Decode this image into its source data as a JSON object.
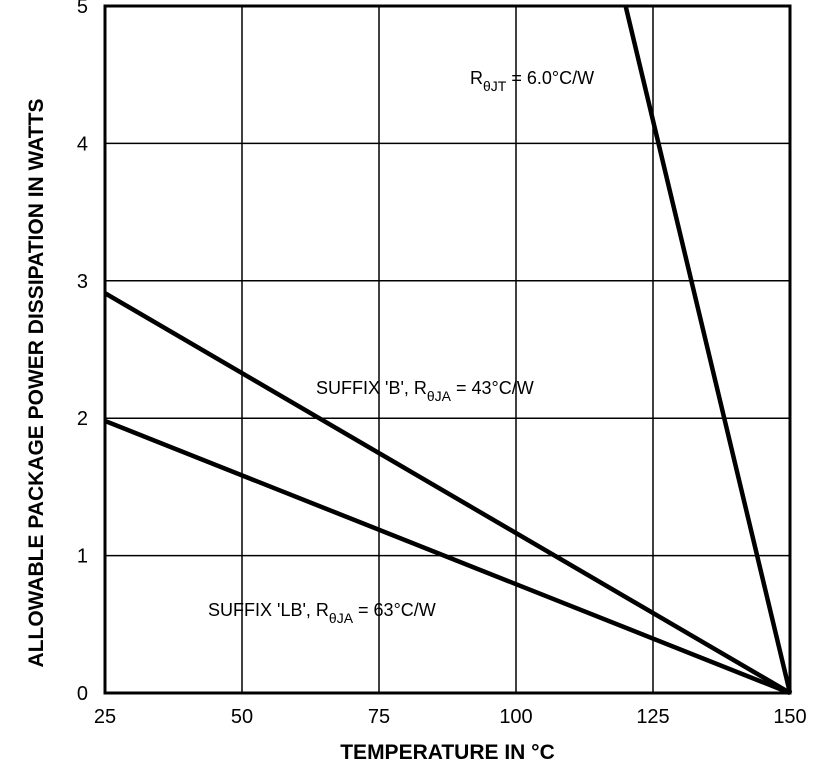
{
  "chart_data": {
    "type": "line",
    "xlabel": "TEMPERATURE IN °C",
    "ylabel": "ALLOWABLE PACKAGE POWER DISSIPATION IN WATTS",
    "xlim": [
      25,
      150
    ],
    "ylim": [
      0,
      5
    ],
    "x_ticks": [
      25,
      50,
      75,
      100,
      125,
      150
    ],
    "y_ticks": [
      0,
      1,
      2,
      3,
      4,
      5
    ],
    "grid": true,
    "series": [
      {
        "label_main": "R",
        "label_sub": "θJT",
        "label_rest": " = 6.0°C/W",
        "x": [
          120,
          150
        ],
        "y": [
          5.0,
          0
        ]
      },
      {
        "label_main": "SUFFIX 'B', R",
        "label_sub": "θJA",
        "label_rest": " = 43°C/W",
        "x": [
          25,
          150
        ],
        "y": [
          2.91,
          0
        ]
      },
      {
        "label_main": "SUFFIX 'LB', R",
        "label_sub": "θJA",
        "label_rest": " = 63°C/W",
        "x": [
          25,
          150
        ],
        "y": [
          1.98,
          0
        ]
      }
    ]
  }
}
